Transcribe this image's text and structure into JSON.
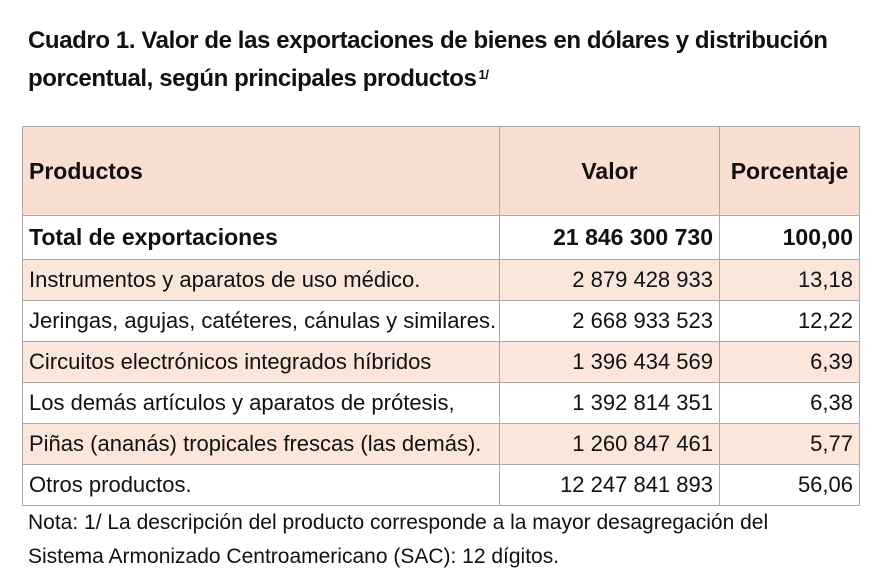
{
  "title": {
    "text": "Cuadro 1. Valor de las exportaciones de bienes en dólares y distribución porcentual, según principales productos",
    "footnote_ref": "1/"
  },
  "table": {
    "headers": [
      "Productos",
      "Valor",
      "Porcentaje"
    ],
    "total": {
      "label": "Total de exportaciones",
      "value": "21 846 300 730",
      "percent": "100,00"
    },
    "rows": [
      {
        "label": "Instrumentos y aparatos de uso médico.",
        "value": "2 879 428 933",
        "percent": "13,18"
      },
      {
        "label": "Jeringas, agujas, catéteres, cánulas y similares.",
        "value": "2 668 933 523",
        "percent": "12,22"
      },
      {
        "label": "Circuitos electrónicos integrados híbridos",
        "value": "1 396 434 569",
        "percent": "6,39"
      },
      {
        "label": "Los demás artículos y aparatos de prótesis,",
        "value": "1 392 814 351",
        "percent": "6,38"
      },
      {
        "label": "Piñas (ananás) tropicales frescas (las demás).",
        "value": "1 260 847 461",
        "percent": "5,77"
      },
      {
        "label": "Otros productos.",
        "value": "12 247 841 893",
        "percent": "56,06"
      }
    ]
  },
  "note": {
    "line1": "Nota: 1/ La descripción del producto corresponde a la mayor desagregación del",
    "line2": "Sistema Armonizado Centroamericano (SAC): 12 dígitos."
  },
  "colors": {
    "header_fill": "#f9ded2",
    "shaded_row_fill": "#fbe6dc",
    "border": "#b0a9a2"
  }
}
